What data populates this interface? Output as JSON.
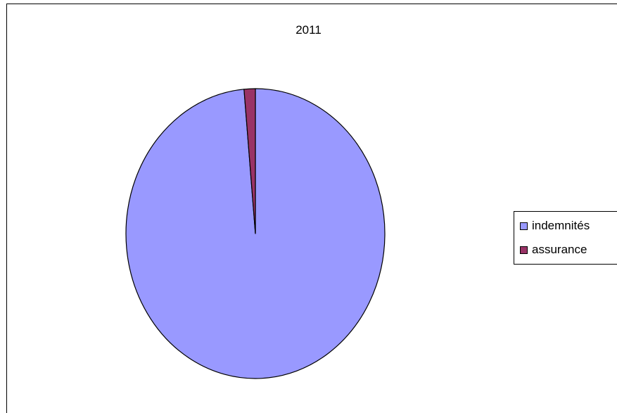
{
  "chart_data": {
    "type": "pie",
    "title": "2011",
    "categories": [
      "indemnités",
      "assurance"
    ],
    "values": [
      98.6,
      1.4
    ],
    "colors": [
      "#9999ff",
      "#993366"
    ],
    "legend_position": "right"
  }
}
